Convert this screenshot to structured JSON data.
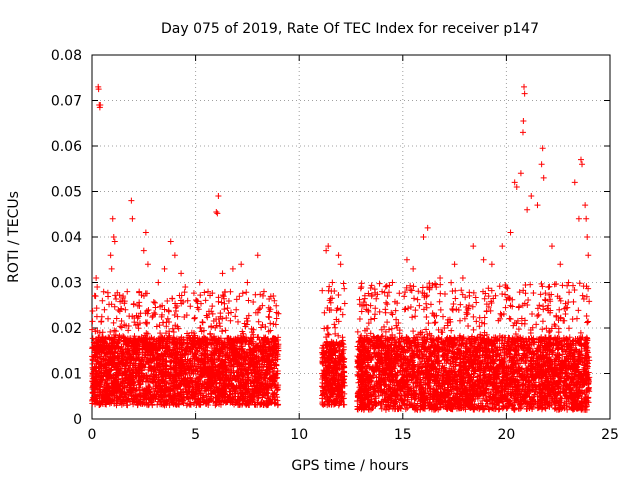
{
  "chart_data": {
    "type": "scatter",
    "title": "Day 075 of 2019, Rate Of TEC Index for receiver p147",
    "xlabel": "GPS time / hours",
    "ylabel": "ROTI / TECUs",
    "xlim": [
      0,
      25
    ],
    "ylim": [
      0,
      0.08
    ],
    "x_ticks": [
      0,
      5,
      10,
      15,
      20,
      25
    ],
    "y_ticks": [
      0,
      0.01,
      0.02,
      0.03,
      0.04,
      0.05,
      0.06,
      0.07,
      0.08
    ],
    "x_tick_labels": [
      "0",
      "5",
      "10",
      "15",
      "20",
      "25"
    ],
    "y_tick_labels": [
      "0",
      "0.01",
      "0.02",
      "0.03",
      "0.04",
      "0.05",
      "0.06",
      "0.07",
      "0.08"
    ],
    "grid": true,
    "marker": "+",
    "color": "#ff0000",
    "series": [
      {
        "name": "ROTI",
        "points": [
          [
            0.3,
            0.073
          ],
          [
            0.32,
            0.0725
          ],
          [
            0.35,
            0.069
          ],
          [
            0.38,
            0.0685
          ],
          [
            0.4,
            0.069
          ],
          [
            0.2,
            0.031
          ],
          [
            0.25,
            0.029
          ],
          [
            0.5,
            0.026
          ],
          [
            0.6,
            0.024
          ],
          [
            0.9,
            0.036
          ],
          [
            0.95,
            0.033
          ],
          [
            1.0,
            0.044
          ],
          [
            1.05,
            0.04
          ],
          [
            1.1,
            0.039
          ],
          [
            1.5,
            0.027
          ],
          [
            1.7,
            0.028
          ],
          [
            1.9,
            0.048
          ],
          [
            1.95,
            0.044
          ],
          [
            2.5,
            0.037
          ],
          [
            2.6,
            0.041
          ],
          [
            2.7,
            0.034
          ],
          [
            3.2,
            0.03
          ],
          [
            3.5,
            0.033
          ],
          [
            3.8,
            0.039
          ],
          [
            4.0,
            0.036
          ],
          [
            4.3,
            0.032
          ],
          [
            4.5,
            0.029
          ],
          [
            5.2,
            0.03
          ],
          [
            5.6,
            0.028
          ],
          [
            6.0,
            0.0455
          ],
          [
            6.05,
            0.0452
          ],
          [
            6.1,
            0.049
          ],
          [
            6.3,
            0.032
          ],
          [
            6.8,
            0.033
          ],
          [
            7.2,
            0.034
          ],
          [
            7.5,
            0.03
          ],
          [
            8.0,
            0.036
          ],
          [
            8.3,
            0.028
          ],
          [
            8.8,
            0.026
          ],
          [
            11.3,
            0.037
          ],
          [
            11.4,
            0.038
          ],
          [
            11.6,
            0.03
          ],
          [
            11.9,
            0.036
          ],
          [
            12.0,
            0.034
          ],
          [
            13.0,
            0.029
          ],
          [
            13.5,
            0.027
          ],
          [
            14.0,
            0.028
          ],
          [
            14.5,
            0.03
          ],
          [
            15.2,
            0.035
          ],
          [
            15.5,
            0.033
          ],
          [
            16.0,
            0.04
          ],
          [
            16.2,
            0.042
          ],
          [
            16.8,
            0.031
          ],
          [
            17.5,
            0.034
          ],
          [
            17.9,
            0.031
          ],
          [
            18.4,
            0.038
          ],
          [
            18.9,
            0.035
          ],
          [
            19.3,
            0.034
          ],
          [
            19.8,
            0.038
          ],
          [
            20.2,
            0.041
          ],
          [
            20.4,
            0.052
          ],
          [
            20.5,
            0.051
          ],
          [
            20.7,
            0.054
          ],
          [
            20.8,
            0.063
          ],
          [
            20.82,
            0.0655
          ],
          [
            20.85,
            0.073
          ],
          [
            20.88,
            0.0715
          ],
          [
            21.0,
            0.046
          ],
          [
            21.2,
            0.049
          ],
          [
            21.5,
            0.047
          ],
          [
            21.7,
            0.056
          ],
          [
            21.75,
            0.0595
          ],
          [
            21.8,
            0.053
          ],
          [
            22.2,
            0.038
          ],
          [
            22.6,
            0.034
          ],
          [
            23.0,
            0.03
          ],
          [
            23.3,
            0.052
          ],
          [
            23.5,
            0.044
          ],
          [
            23.6,
            0.057
          ],
          [
            23.65,
            0.056
          ],
          [
            23.8,
            0.047
          ],
          [
            23.85,
            0.044
          ],
          [
            23.9,
            0.04
          ],
          [
            23.95,
            0.036
          ]
        ]
      }
    ],
    "dense_segments": [
      {
        "start": 0.0,
        "end": 9.0,
        "baseline_min": 0.003,
        "baseline_max": 0.018,
        "upper": 0.028
      },
      {
        "start": 11.1,
        "end": 12.2,
        "baseline_min": 0.003,
        "baseline_max": 0.017,
        "upper": 0.03
      },
      {
        "start": 12.8,
        "end": 24.0,
        "baseline_min": 0.002,
        "baseline_max": 0.018,
        "upper": 0.03
      }
    ]
  }
}
